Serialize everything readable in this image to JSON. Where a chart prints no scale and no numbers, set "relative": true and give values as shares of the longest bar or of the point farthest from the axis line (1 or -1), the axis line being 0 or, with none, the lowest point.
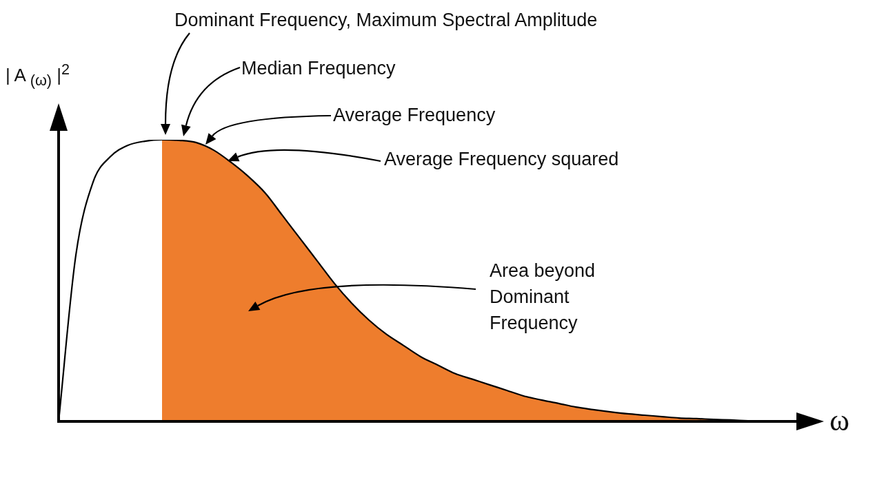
{
  "chart_data": {
    "type": "line",
    "relative": true,
    "xlabel": "ω",
    "ylabel": "| A $_{(ω)}$ |$^{2}$",
    "categories": [
      null,
      null,
      null,
      null,
      null,
      null,
      null,
      null,
      null,
      null,
      null,
      null,
      null,
      null,
      null,
      null,
      null,
      null,
      null,
      null,
      null,
      null,
      null,
      null,
      null,
      null,
      null,
      null,
      null,
      null,
      null,
      null,
      null,
      null,
      null,
      null,
      null,
      null,
      null,
      null,
      null,
      null,
      null,
      null
    ],
    "series": [
      {
        "type": "area",
        "color": "#ee7d2d",
        "values": [
          null,
          null,
          null,
          null,
          null,
          null,
          1,
          0.998,
          0.99,
          0.963,
          0.92,
          0.87,
          0.81,
          0.73,
          0.65,
          0.57,
          0.49,
          0.42,
          0.36,
          0.31,
          0.27,
          0.23,
          0.2,
          0.17,
          0.15,
          0.13,
          0.11,
          0.09,
          0.076,
          0.064,
          0.051,
          0.042,
          0.034,
          0.027,
          0.022,
          0.017,
          0.012,
          0.01,
          0.007,
          0.005,
          0.002,
          0,
          null,
          null
        ]
      },
      {
        "color": "#000000",
        "values": [
          0,
          0.59,
          0.85,
          0.94,
          0.98,
          0.995,
          1,
          0.998,
          0.99,
          0.963,
          0.92,
          0.87,
          0.81,
          0.73,
          0.65,
          0.57,
          0.49,
          0.42,
          0.36,
          0.31,
          0.27,
          0.23,
          0.2,
          0.17,
          0.15,
          0.13,
          0.11,
          0.09,
          0.076,
          0.064,
          0.051,
          0.042,
          0.034,
          0.027,
          0.022,
          0.017,
          0.012,
          0.01,
          0.007,
          0.005,
          0.002,
          0,
          null,
          null
        ]
      }
    ],
    "annotations": [
      "Dominant Frequency, Maximum Spectral Amplitude",
      "Median Frequency",
      "Average Frequency",
      "Average Frequency squared",
      "Area beyond Dominant Frequency"
    ]
  }
}
